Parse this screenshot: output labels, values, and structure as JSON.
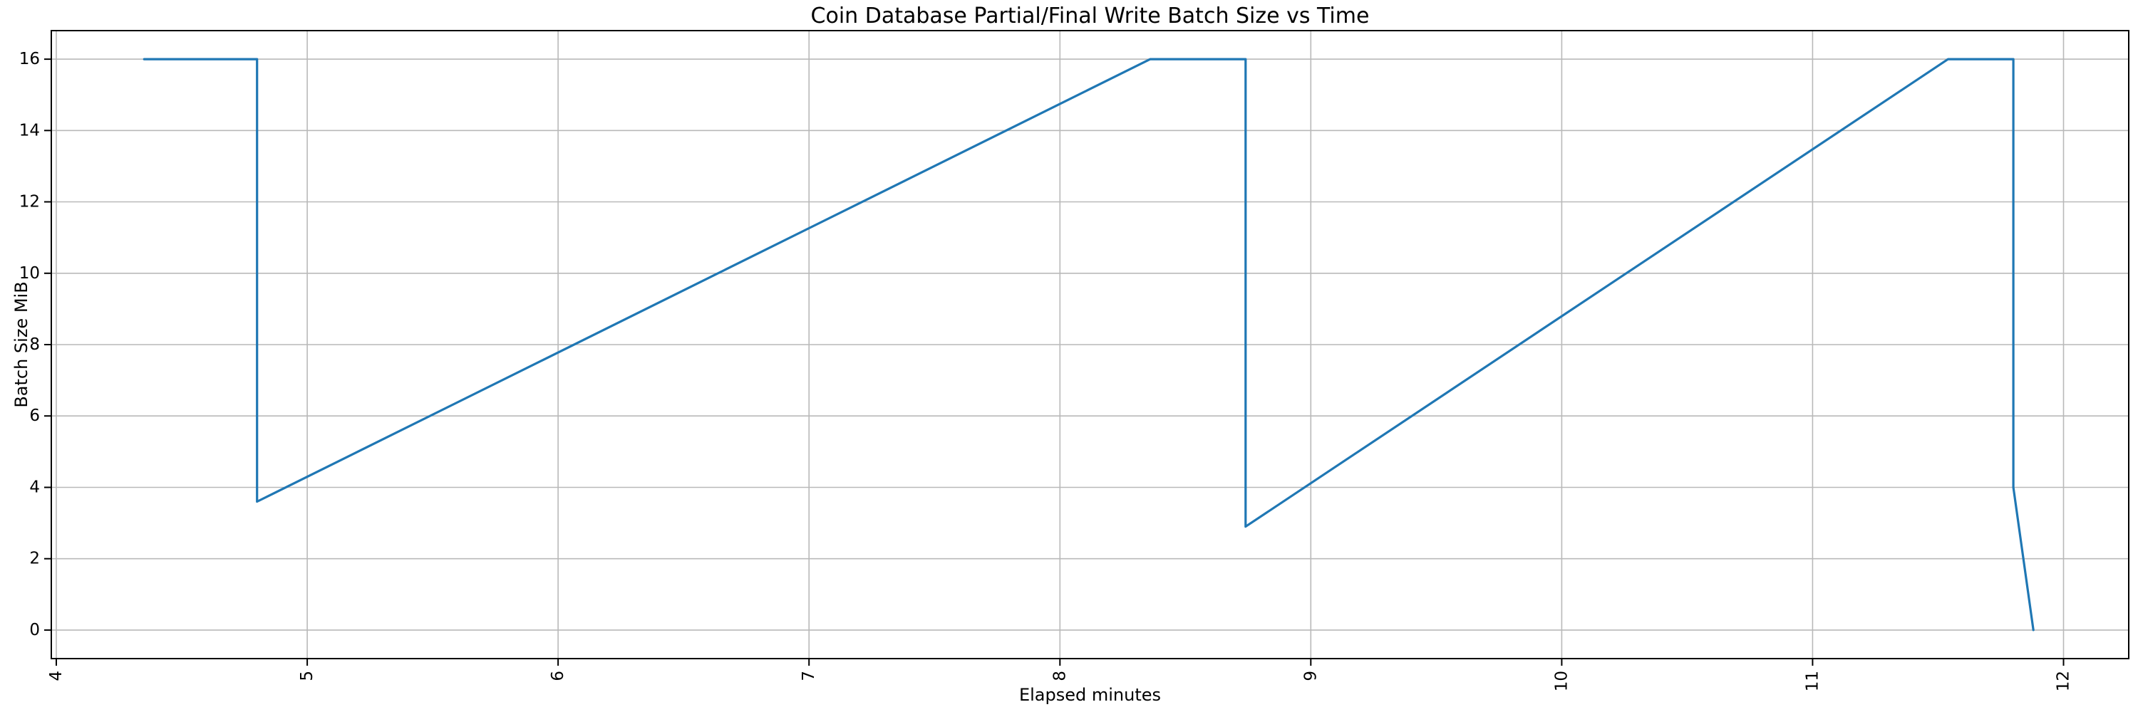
{
  "chart_data": {
    "type": "line",
    "title": "Coin Database Partial/Final Write Batch Size vs Time",
    "xlabel": "Elapsed minutes",
    "ylabel": "Batch Size MiB",
    "x_ticks": [
      4,
      5,
      6,
      7,
      8,
      9,
      10,
      11,
      12
    ],
    "y_ticks": [
      0,
      2,
      4,
      6,
      8,
      10,
      12,
      14,
      16
    ],
    "xlim": [
      3.98,
      12.26
    ],
    "ylim": [
      -0.8,
      16.8
    ],
    "grid": true,
    "legend": "none",
    "series": [
      {
        "points": [
          [
            4.35,
            16
          ],
          [
            4.8,
            16
          ],
          [
            4.8,
            3.6
          ],
          [
            8.36,
            16
          ],
          [
            8.74,
            16
          ],
          [
            8.74,
            2.9
          ],
          [
            11.54,
            16
          ],
          [
            11.8,
            16
          ],
          [
            11.8,
            4.0
          ],
          [
            11.88,
            0
          ]
        ]
      }
    ],
    "colors": {
      "line": "#1f77b4",
      "grid": "#b9b9b9",
      "spine": "#000000",
      "text": "#000000",
      "background": "#ffffff"
    }
  }
}
